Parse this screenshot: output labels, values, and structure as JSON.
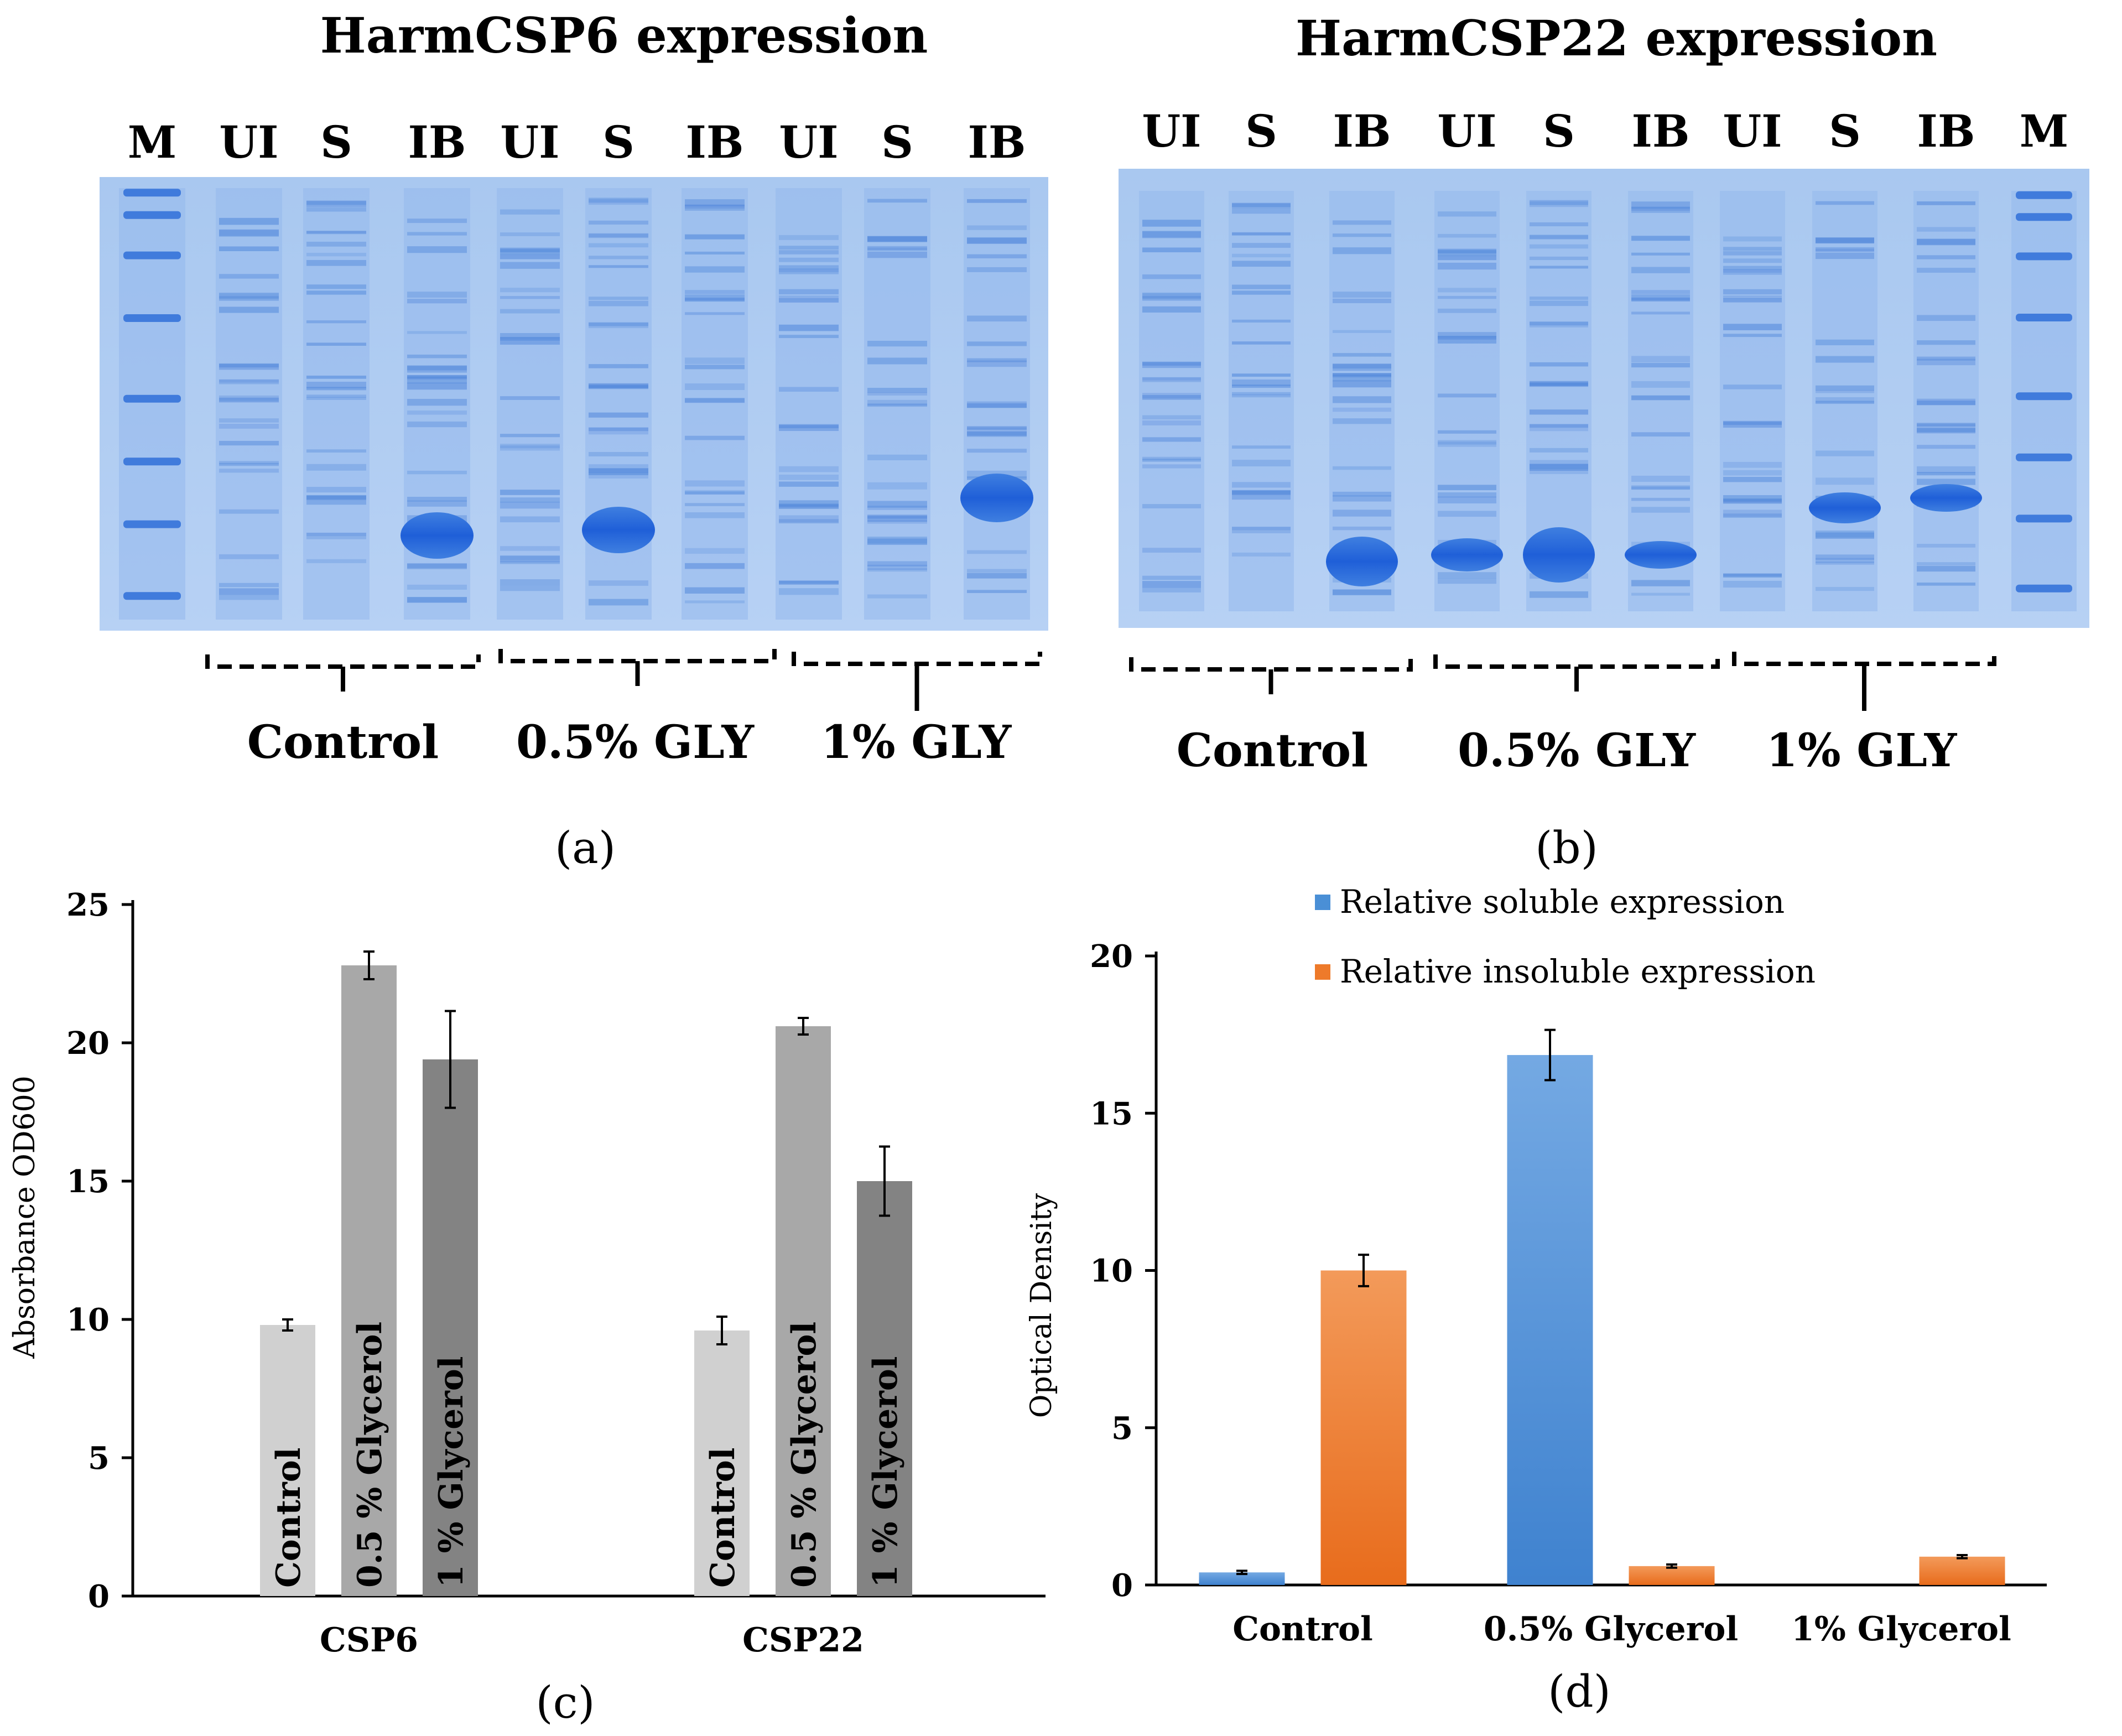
{
  "gel_a": {
    "title": "HarmCSP6 expression",
    "lanes": [
      "M",
      "UI",
      "S",
      "IB",
      "UI",
      "S",
      "IB",
      "UI",
      "S",
      "IB"
    ],
    "groups": [
      "Control",
      "0.5% GLY",
      "1% GLY"
    ],
    "panel_label": "(a)"
  },
  "gel_b": {
    "title": "HarmCSP22 expression",
    "lanes": [
      "UI",
      "S",
      "IB",
      "UI",
      "S",
      "IB",
      "UI",
      "S",
      "IB",
      "M"
    ],
    "groups": [
      "Control",
      "0.5% GLY",
      "1% GLY"
    ],
    "panel_label": "(b)"
  },
  "chart_data": [
    {
      "id": "c",
      "type": "bar",
      "panel_label": "(c)",
      "title": "",
      "ylabel": "Absorbance OD600",
      "xlabel": "",
      "ylim": [
        0,
        25
      ],
      "yticks": [
        "0",
        "5",
        "10",
        "15",
        "20",
        "25"
      ],
      "categories": [
        "CSP6",
        "CSP22"
      ],
      "series": [
        {
          "name": "Control",
          "color": "#d0d0d0",
          "values": [
            9.8,
            9.6
          ],
          "errors": [
            0.2,
            0.5
          ]
        },
        {
          "name": "0.5 % Glycerol",
          "color": "#a8a8a8",
          "values": [
            22.8,
            20.6
          ],
          "errors": [
            0.5,
            0.3
          ]
        },
        {
          "name": "1 % Glycerol",
          "color": "#838383",
          "values": [
            19.4,
            15.0
          ],
          "errors": [
            1.75,
            1.25
          ]
        }
      ]
    },
    {
      "id": "d",
      "type": "bar",
      "panel_label": "(d)",
      "title": "",
      "ylabel": "Optical Density",
      "xlabel": "",
      "ylim": [
        0,
        20
      ],
      "yticks": [
        "0",
        "5",
        "10",
        "15",
        "20"
      ],
      "categories": [
        "Control",
        "0.5% Glycerol",
        "1% Glycerol"
      ],
      "legend_position": "top",
      "series": [
        {
          "name": "Relative soluble expression",
          "color": "#4a8fd6",
          "values": [
            0.4,
            16.85,
            0.0
          ],
          "errors": [
            0.05,
            0.8,
            0
          ]
        },
        {
          "name": "Relative insoluble expression",
          "color": "#ee7a2a",
          "values": [
            10.0,
            0.6,
            0.9
          ],
          "errors": [
            0.5,
            0.05,
            0.05
          ]
        }
      ]
    }
  ]
}
